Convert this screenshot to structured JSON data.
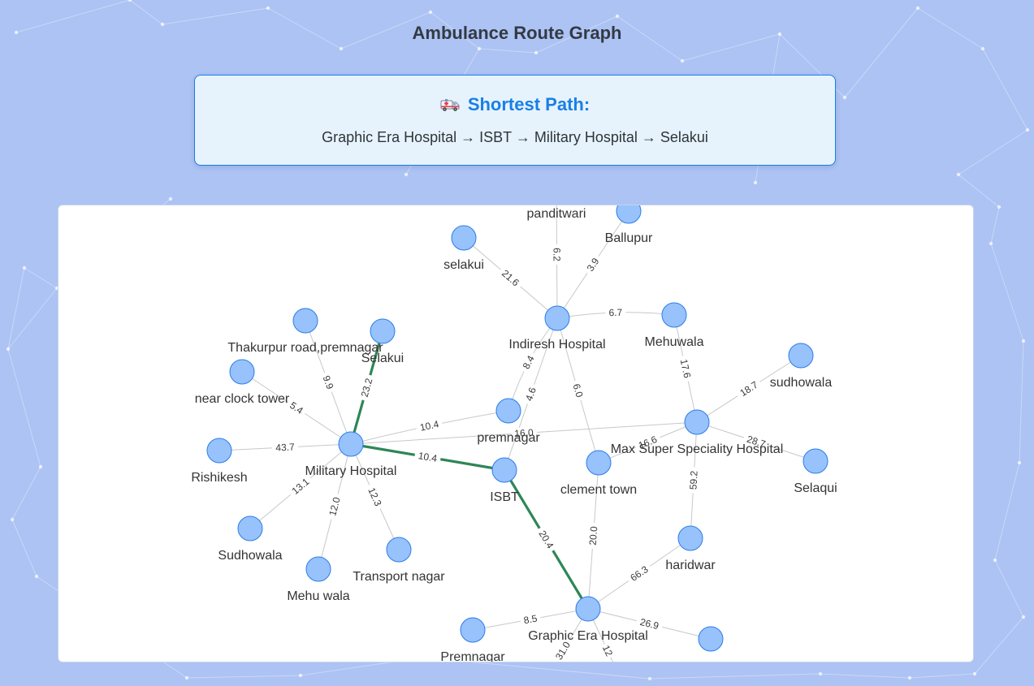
{
  "page": {
    "title": "Ambulance Route Graph"
  },
  "shortest_path": {
    "heading": "Shortest Path:",
    "icon": "ambulance-icon",
    "route_text": "Graphic Era Hospital → ISBT → Military Hospital → Selakui"
  },
  "colors": {
    "background": "#acc3f3",
    "accent": "#1a7fe6",
    "node_fill": "#97c2fc",
    "node_border": "#2b7ce9",
    "path_edge": "#2e8657",
    "edge": "#c8c8c8"
  },
  "graph": {
    "nodes": [
      {
        "id": "panditwari",
        "label": "panditwari"
      },
      {
        "id": "ballupur",
        "label": "Ballupur"
      },
      {
        "id": "selakui_lower",
        "label": "selakui"
      },
      {
        "id": "indiresh",
        "label": "Indiresh Hospital"
      },
      {
        "id": "mehuwala",
        "label": "Mehuwala"
      },
      {
        "id": "thakurpur",
        "label": "Thakurpur road,premnagar"
      },
      {
        "id": "selakui",
        "label": "Selakui"
      },
      {
        "id": "clocktower",
        "label": "near clock tower"
      },
      {
        "id": "sudhowala_lower",
        "label": "sudhowala"
      },
      {
        "id": "premnagar_lower",
        "label": "premnagar"
      },
      {
        "id": "maxsuper",
        "label": "Max Super Speciality Hospital"
      },
      {
        "id": "rishikesh",
        "label": "Rishikesh"
      },
      {
        "id": "military",
        "label": "Military Hospital"
      },
      {
        "id": "isbt",
        "label": "ISBT"
      },
      {
        "id": "clementtown",
        "label": "clement town"
      },
      {
        "id": "selaqui",
        "label": "Selaqui"
      },
      {
        "id": "sudhowala",
        "label": "Sudhowala"
      },
      {
        "id": "transportnagar",
        "label": "Transport nagar"
      },
      {
        "id": "mehuwala2",
        "label": "Mehu wala"
      },
      {
        "id": "haridwar",
        "label": "haridwar"
      },
      {
        "id": "graphicera",
        "label": "Graphic Era Hospital"
      },
      {
        "id": "premnagar",
        "label": "Premnagar"
      },
      {
        "id": "unlabeled_east",
        "label": ""
      }
    ],
    "edges": [
      {
        "from": "indiresh",
        "to": "panditwari",
        "weight": "6.2",
        "on_path": false
      },
      {
        "from": "indiresh",
        "to": "ballupur",
        "weight": "3.9",
        "on_path": false
      },
      {
        "from": "indiresh",
        "to": "selakui_lower",
        "weight": "21.6",
        "on_path": false
      },
      {
        "from": "indiresh",
        "to": "mehuwala",
        "weight": "6.7",
        "on_path": false
      },
      {
        "from": "indiresh",
        "to": "premnagar_lower",
        "weight": "8.4",
        "on_path": false
      },
      {
        "from": "indiresh",
        "to": "isbt",
        "weight": "4.6",
        "on_path": false
      },
      {
        "from": "indiresh",
        "to": "clementtown",
        "weight": "6.0",
        "on_path": false
      },
      {
        "from": "mehuwala",
        "to": "maxsuper",
        "weight": "17.6",
        "on_path": false
      },
      {
        "from": "maxsuper",
        "to": "sudhowala_lower",
        "weight": "18.7",
        "on_path": false
      },
      {
        "from": "maxsuper",
        "to": "selaqui",
        "weight": "28.7",
        "on_path": false
      },
      {
        "from": "maxsuper",
        "to": "clementtown",
        "weight": "16.6",
        "on_path": false
      },
      {
        "from": "maxsuper",
        "to": "haridwar",
        "weight": "59.2",
        "on_path": false
      },
      {
        "from": "maxsuper",
        "to": "military",
        "weight": "16.0",
        "on_path": false
      },
      {
        "from": "military",
        "to": "premnagar_lower",
        "weight": "10.4",
        "on_path": false
      },
      {
        "from": "military",
        "to": "thakurpur",
        "weight": "9.9",
        "on_path": false
      },
      {
        "from": "military",
        "to": "clocktower",
        "weight": "5.4",
        "on_path": false
      },
      {
        "from": "military",
        "to": "rishikesh",
        "weight": "43.7",
        "on_path": false
      },
      {
        "from": "military",
        "to": "sudhowala",
        "weight": "13.1",
        "on_path": false
      },
      {
        "from": "military",
        "to": "mehuwala2",
        "weight": "12.0",
        "on_path": false
      },
      {
        "from": "military",
        "to": "transportnagar",
        "weight": "12.3",
        "on_path": false
      },
      {
        "from": "military",
        "to": "selakui",
        "weight": "23.2",
        "on_path": true
      },
      {
        "from": "military",
        "to": "isbt",
        "weight": "10.4",
        "on_path": true
      },
      {
        "from": "isbt",
        "to": "graphicera",
        "weight": "20.4",
        "on_path": true
      },
      {
        "from": "clementtown",
        "to": "graphicera",
        "weight": "20.0",
        "on_path": false
      },
      {
        "from": "haridwar",
        "to": "graphicera",
        "weight": "66.3",
        "on_path": false
      },
      {
        "from": "graphicera",
        "to": "premnagar",
        "weight": "8.5",
        "on_path": false
      },
      {
        "from": "graphicera",
        "to": "unlabeled_east",
        "weight": "26.9",
        "on_path": false
      },
      {
        "from": "graphicera",
        "to": "offscreen_1",
        "weight": "31.0",
        "on_path": false
      },
      {
        "from": "graphicera",
        "to": "offscreen_2",
        "weight": "12",
        "on_path": false
      }
    ]
  }
}
